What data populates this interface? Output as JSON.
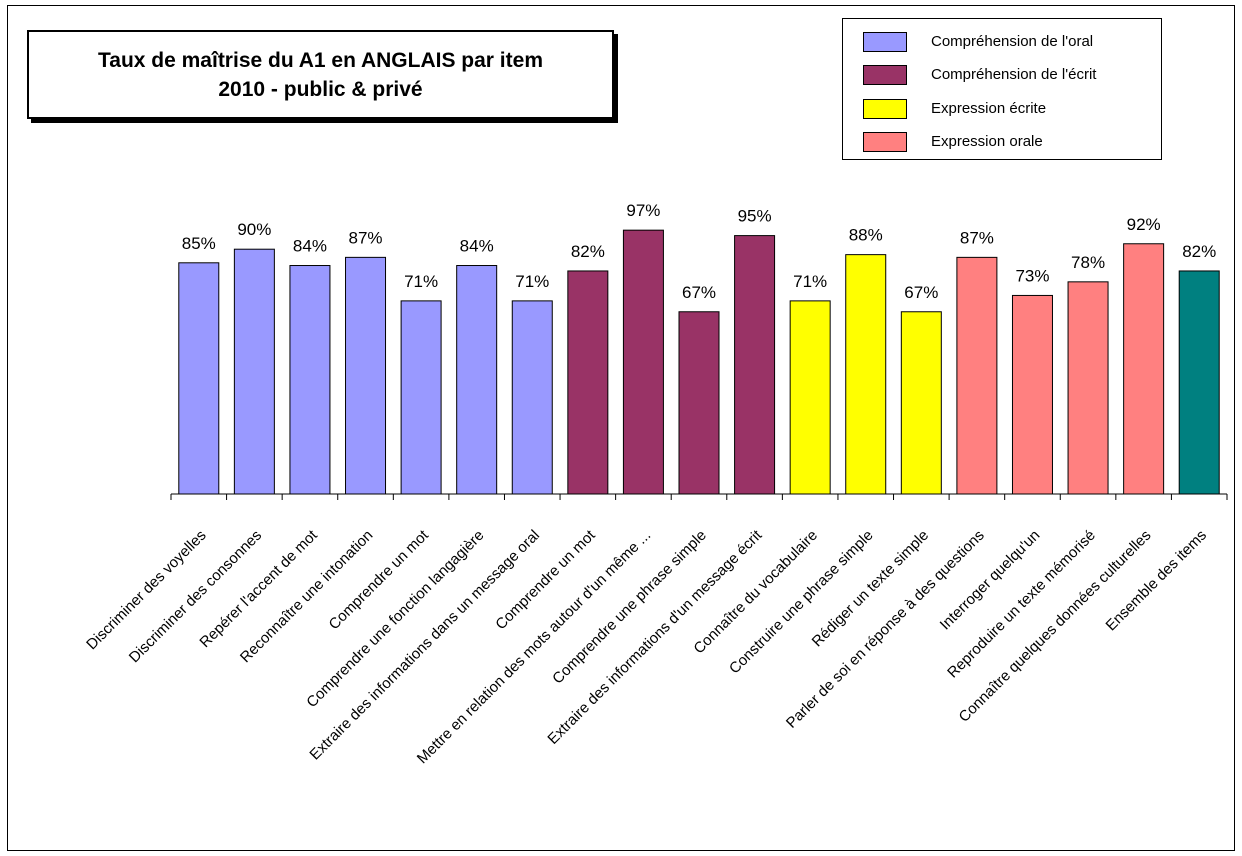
{
  "chart_data": {
    "type": "bar",
    "title_lines": [
      "Taux de maîtrise du A1 en ANGLAIS par item",
      "2010 - public & privé"
    ],
    "categories": [
      "Discriminer des voyelles",
      "Discriminer des consonnes",
      "Repérer l'accent de mot",
      "Reconnaître une intonation",
      "Comprendre un mot",
      "Comprendre une fonction langagière",
      "Extraire des informations dans un message oral",
      "Comprendre un mot",
      "Mettre en relation  des mots autour d'un même ...",
      "Comprendre une phrase simple",
      "Extraire des informations d'un message écrit",
      "Connaître du vocabulaire",
      "Construire une phrase simple",
      "Rédiger un texte simple",
      "Parler de soi en réponse à des questions",
      "Interroger quelqu'un",
      "Reproduire un texte mémorisé",
      "Connaître quelques données culturelles",
      "Ensemble des items"
    ],
    "values": [
      85,
      90,
      84,
      87,
      71,
      84,
      71,
      82,
      97,
      67,
      95,
      71,
      88,
      67,
      87,
      73,
      78,
      92,
      82
    ],
    "value_labels": [
      "85%",
      "90%",
      "84%",
      "87%",
      "71%",
      "84%",
      "71%",
      "82%",
      "97%",
      "67%",
      "95%",
      "71%",
      "88%",
      "67%",
      "87%",
      "73%",
      "78%",
      "92%",
      "82%"
    ],
    "groups": [
      0,
      0,
      0,
      0,
      0,
      0,
      0,
      1,
      1,
      1,
      1,
      2,
      2,
      2,
      3,
      3,
      3,
      3,
      4
    ],
    "group_colors": [
      "#9999ff",
      "#993366",
      "#ffff00",
      "#ff8080",
      "#008080"
    ],
    "legend": [
      {
        "label": "Compréhension de l'oral",
        "color": "#9999ff"
      },
      {
        "label": "Compréhension de l'écrit",
        "color": "#993366"
      },
      {
        "label": "Expression écrite",
        "color": "#ffff00"
      },
      {
        "label": "Expression orale",
        "color": "#ff8080"
      }
    ],
    "legend_position": "top-right",
    "ylim": [
      0,
      100
    ],
    "grid": false,
    "xlabel": "",
    "ylabel": ""
  }
}
